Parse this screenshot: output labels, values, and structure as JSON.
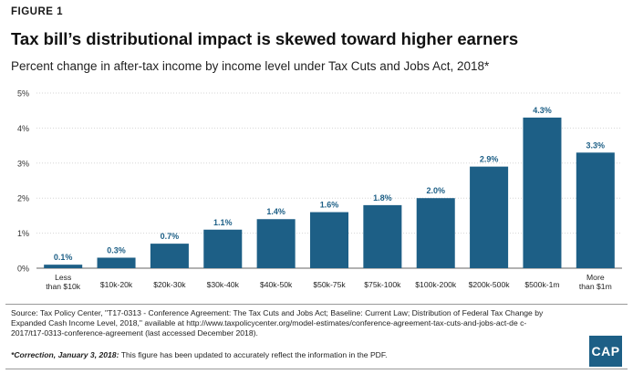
{
  "figure_label": "FIGURE 1",
  "title": "Tax bill’s distributional impact is skewed toward higher earners",
  "subtitle": "Percent change in after-tax income by income level under Tax Cuts and Jobs Act, 2018*",
  "source": "Source: Tax Policy Center, \"T17-0313 - Conference Agreement: The Tax Cuts and Jobs Act; Baseline: Current Law; Distribution of Federal Tax Change by Expanded Cash Income Level, 2018,\" available at http://www.taxpolicycenter.org/model-estimates/conference-agreement-tax-cuts-and-jobs-act-de c-2017/t17-0313-conference-agreement (last accessed December 2018).",
  "correction_lead": "*Correction, January 3, 2018:",
  "correction_text": " This figure has been updated to accurately reflect the information in the PDF.",
  "logo_text": "CAP",
  "colors": {
    "bar": "#1d5f86",
    "label": "#1d5f86",
    "axis": "#666666",
    "grid": "#d6d6d6"
  },
  "chart_data": {
    "type": "bar",
    "categories": [
      [
        "Less",
        "than $10k"
      ],
      [
        "$10k-20k"
      ],
      [
        "$20k-30k"
      ],
      [
        "$30k-40k"
      ],
      [
        "$40k-50k"
      ],
      [
        "$50k-75k"
      ],
      [
        "$75k-100k"
      ],
      [
        "$100k-200k"
      ],
      [
        "$200k-500k"
      ],
      [
        "$500k-1m"
      ],
      [
        "More",
        "than $1m"
      ]
    ],
    "values": [
      0.1,
      0.3,
      0.7,
      1.1,
      1.4,
      1.6,
      1.8,
      2.0,
      2.9,
      4.3,
      3.3
    ],
    "value_labels": [
      "0.1%",
      "0.3%",
      "0.7%",
      "1.1%",
      "1.4%",
      "1.6%",
      "1.8%",
      "2.0%",
      "2.9%",
      "4.3%",
      "3.3%"
    ],
    "yticks": [
      "0%",
      "1%",
      "2%",
      "3%",
      "4%",
      "5%"
    ],
    "ylim": [
      0,
      5
    ],
    "grid": true
  }
}
